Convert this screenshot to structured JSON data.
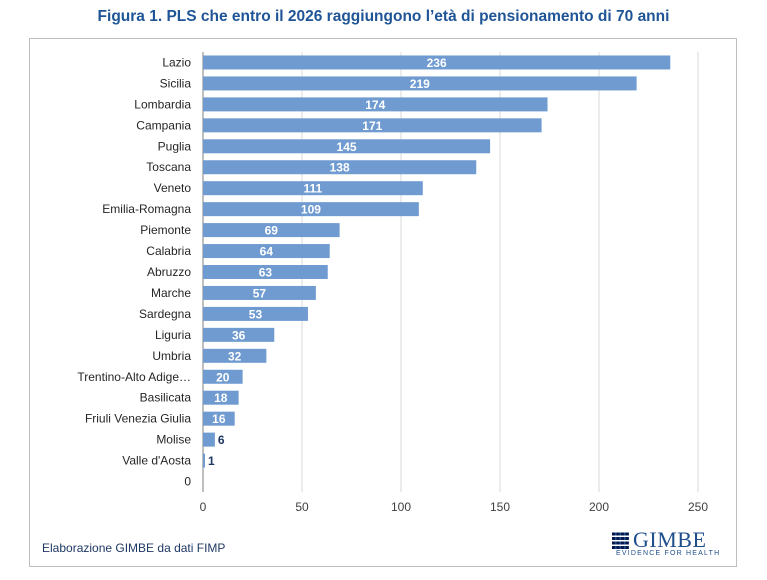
{
  "figure": {
    "title": "Figura 1. PLS che entro il 2026 raggiungono l’età di pensionamento di 70 anni",
    "source": "Elaborazione GIMBE da dati FIMP",
    "logo": {
      "name": "GIMBE",
      "tagline": "EVIDENCE FOR HEALTH"
    }
  },
  "colors": {
    "bar": "#6f9bd0",
    "title": "#1f5596",
    "gridline": "#d9d9d9",
    "axis": "#7f7f7f",
    "label_inside": "#ffffff",
    "label_outside": "#1f3864"
  },
  "chart_data": {
    "type": "bar",
    "orientation": "horizontal",
    "title": "Figura 1. PLS che entro il 2026 raggiungono l’età di pensionamento di 70 anni",
    "xlabel": "",
    "ylabel": "",
    "xlim": [
      0,
      250
    ],
    "xticks": [
      "0",
      "50",
      "100",
      "150",
      "200",
      "250"
    ],
    "grid": "vertical",
    "legend": "none",
    "categories": [
      "Lazio",
      "Sicilia",
      "Lombardia",
      "Campania",
      "Puglia",
      "Toscana",
      "Veneto",
      "Emilia-Romagna",
      "Piemonte",
      "Calabria",
      "Abruzzo",
      "Marche",
      "Sardegna",
      "Liguria",
      "Umbria",
      "Trentino-Alto Adige…",
      "Basilicata",
      "Friuli Venezia Giulia",
      "Molise",
      "Valle d'Aosta",
      "0"
    ],
    "values": [
      236,
      219,
      174,
      171,
      145,
      138,
      111,
      109,
      69,
      64,
      63,
      57,
      53,
      36,
      32,
      20,
      18,
      16,
      6,
      1,
      null
    ],
    "data_labels": [
      "236",
      "219",
      "174",
      "171",
      "145",
      "138",
      "111",
      "109",
      "69",
      "64",
      "63",
      "57",
      "53",
      "36",
      "32",
      "20",
      "18",
      "16",
      "6",
      "1",
      ""
    ]
  }
}
